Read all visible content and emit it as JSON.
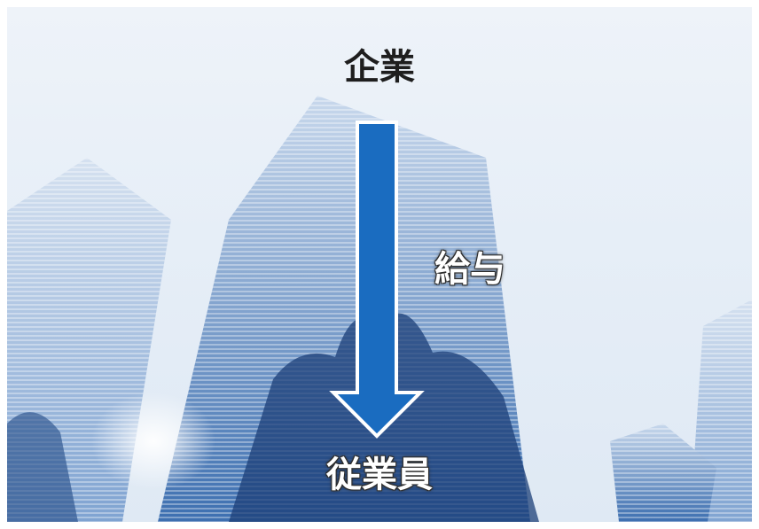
{
  "diagram": {
    "source_label": "企業",
    "flow_label": "給与",
    "target_label": "従業員",
    "arrow_color": "#1a6cc0",
    "arrow_outline": "#ffffff"
  }
}
